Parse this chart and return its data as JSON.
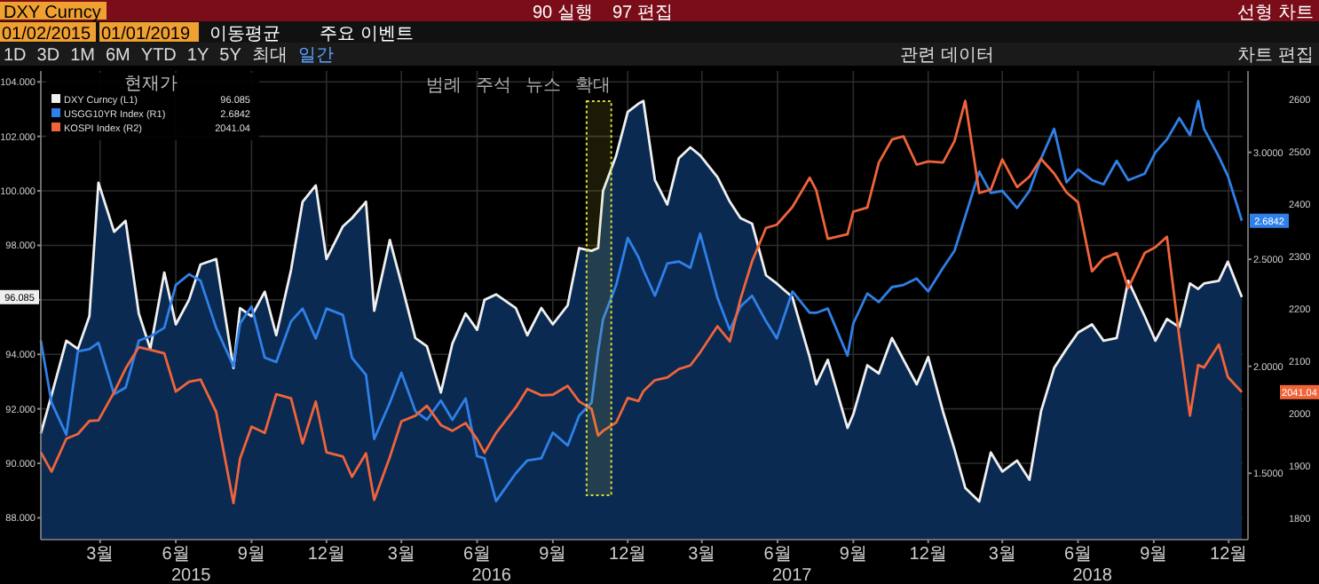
{
  "chart_data": {
    "type": "line",
    "title": "DXY Curncy",
    "annotations": [
      "90 실행",
      "97 편집",
      "선형 차트",
      "01/02/2015",
      "01/01/2019",
      "이동평균",
      "주요 이벤트",
      "1D",
      "3D",
      "1M",
      "6M",
      "YTD",
      "1Y",
      "5Y",
      "최대",
      "일간",
      "관련 데이터",
      "차트 편집",
      "범례",
      "주석",
      "뉴스",
      "확대",
      "2015",
      "2016",
      "2017",
      "2018",
      "96.085",
      "2.6842",
      "2041.04"
    ],
    "legend_title": "현재가",
    "legend": "top left",
    "grid": true,
    "x": [
      "2015-01-02",
      "2015-01-15",
      "2015-02-02",
      "2015-02-16",
      "2015-03-02",
      "2015-03-13",
      "2015-04-01",
      "2015-04-15",
      "2015-05-01",
      "2015-05-15",
      "2015-06-01",
      "2015-06-15",
      "2015-07-01",
      "2015-07-15",
      "2015-08-03",
      "2015-08-24",
      "2015-09-01",
      "2015-09-15",
      "2015-10-01",
      "2015-10-15",
      "2015-11-02",
      "2015-11-16",
      "2015-12-02",
      "2015-12-15",
      "2016-01-04",
      "2016-01-15",
      "2016-02-01",
      "2016-02-11",
      "2016-03-01",
      "2016-03-15",
      "2016-04-01",
      "2016-04-15",
      "2016-05-02",
      "2016-05-16",
      "2016-06-01",
      "2016-06-15",
      "2016-06-24",
      "2016-07-08",
      "2016-08-01",
      "2016-08-15",
      "2016-09-01",
      "2016-09-15",
      "2016-10-03",
      "2016-10-17",
      "2016-11-01",
      "2016-11-09",
      "2016-11-15",
      "2016-12-01",
      "2016-12-15",
      "2016-12-28",
      "2017-01-03",
      "2017-01-17",
      "2017-02-01",
      "2017-02-15",
      "2017-03-01",
      "2017-03-13",
      "2017-04-03",
      "2017-04-18",
      "2017-05-01",
      "2017-05-15",
      "2017-06-01",
      "2017-06-14",
      "2017-07-03",
      "2017-07-24",
      "2017-08-01",
      "2017-08-15",
      "2017-09-08",
      "2017-09-15",
      "2017-10-02",
      "2017-10-16",
      "2017-11-01",
      "2017-11-15",
      "2017-12-01",
      "2017-12-15",
      "2018-01-02",
      "2018-01-16",
      "2018-01-29",
      "2018-02-15",
      "2018-03-01",
      "2018-03-15",
      "2018-04-02",
      "2018-04-17",
      "2018-05-01",
      "2018-05-17",
      "2018-06-01",
      "2018-06-15",
      "2018-07-02",
      "2018-07-16",
      "2018-08-01",
      "2018-08-15",
      "2018-09-04",
      "2018-09-17",
      "2018-10-01",
      "2018-10-16",
      "2018-10-29",
      "2018-11-08",
      "2018-11-15",
      "2018-12-03",
      "2018-12-14",
      "2018-12-31"
    ],
    "xlim": [
      "2015-01-02",
      "2019-01-01"
    ],
    "xticks": [
      {
        "value": "2015-03-15",
        "label": "3월"
      },
      {
        "value": "2015-06-15",
        "label": "6월"
      },
      {
        "value": "2015-09-15",
        "label": "9월"
      },
      {
        "value": "2015-12-15",
        "label": "12월"
      },
      {
        "value": "2016-03-15",
        "label": "3월"
      },
      {
        "value": "2016-06-15",
        "label": "6월"
      },
      {
        "value": "2016-09-15",
        "label": "9월"
      },
      {
        "value": "2016-12-15",
        "label": "12월"
      },
      {
        "value": "2017-03-15",
        "label": "3월"
      },
      {
        "value": "2017-06-15",
        "label": "6월"
      },
      {
        "value": "2017-09-15",
        "label": "9월"
      },
      {
        "value": "2017-12-15",
        "label": "12월"
      },
      {
        "value": "2018-03-15",
        "label": "3월"
      },
      {
        "value": "2018-06-15",
        "label": "6월"
      },
      {
        "value": "2018-09-15",
        "label": "9월"
      },
      {
        "value": "2018-12-15",
        "label": "12월"
      }
    ],
    "ylim": [
      87.2,
      104.4
    ],
    "yticks": [
      {
        "value": 88,
        "label": "88.000"
      },
      {
        "value": 90,
        "label": "90.000"
      },
      {
        "value": 92,
        "label": "92.000"
      },
      {
        "value": 94,
        "label": "94.000"
      },
      {
        "value": 96,
        "label": null
      },
      {
        "value": 98,
        "label": "98.000"
      },
      {
        "value": 100,
        "label": "100.000"
      },
      {
        "value": 102,
        "label": "102.000"
      },
      {
        "value": 104,
        "label": "104.000"
      }
    ],
    "y2lim": [
      1.19,
      3.38
    ],
    "y2ticks": [
      {
        "value": 1.5,
        "label": "1.5000"
      },
      {
        "value": 2,
        "label": "2.0000"
      },
      {
        "value": 2.5,
        "label": "2.5000"
      },
      {
        "value": 3,
        "label": "3.0000"
      }
    ],
    "y3lim": [
      1759,
      2655
    ],
    "y3ticks": [
      1800,
      1900,
      2000,
      2100,
      2200,
      2300,
      2400,
      2500,
      2600
    ],
    "bands": [
      {
        "axis": "x",
        "from": "2016-10-26",
        "to": "2016-11-25",
        "color": "#d8d83a"
      }
    ],
    "series": [
      {
        "name": "DXY Curncy (L1)",
        "type": "area",
        "color": "#f0f0f0",
        "axis": "y",
        "values": [
          91.1,
          92.5,
          94.5,
          94.2,
          95.4,
          100.3,
          98.5,
          98.9,
          95.5,
          94.2,
          97.0,
          95.1,
          96.0,
          97.3,
          97.5,
          93.5,
          95.7,
          95.4,
          96.3,
          94.7,
          97.1,
          99.6,
          100.2,
          97.5,
          98.7,
          99.0,
          99.6,
          95.6,
          98.2,
          96.6,
          94.6,
          94.3,
          92.6,
          94.4,
          95.5,
          94.9,
          96.0,
          96.2,
          95.7,
          94.7,
          95.7,
          95.1,
          95.8,
          97.9,
          97.8,
          97.9,
          100.0,
          101.3,
          102.9,
          103.2,
          103.3,
          100.4,
          99.5,
          101.2,
          101.6,
          101.3,
          100.5,
          99.6,
          99.0,
          98.8,
          96.9,
          96.6,
          96.1,
          93.9,
          92.9,
          93.8,
          91.3,
          91.8,
          93.6,
          93.3,
          94.6,
          93.8,
          92.9,
          93.9,
          91.9,
          90.5,
          89.1,
          88.6,
          90.4,
          89.7,
          90.1,
          89.4,
          91.9,
          93.5,
          94.2,
          94.8,
          95.1,
          94.5,
          94.6,
          96.7,
          95.4,
          94.5,
          95.3,
          95.0,
          96.6,
          96.4,
          96.6,
          96.7,
          97.4,
          96.1
        ]
      },
      {
        "name": "USGG10YR Index (R1)",
        "type": "line",
        "color": "#2f80e8",
        "axis": "y2",
        "values": [
          2.12,
          1.83,
          1.68,
          2.07,
          2.08,
          2.11,
          1.87,
          1.9,
          2.12,
          2.14,
          2.18,
          2.38,
          2.43,
          2.4,
          2.18,
          2.0,
          2.2,
          2.28,
          2.04,
          2.02,
          2.21,
          2.27,
          2.13,
          2.27,
          2.24,
          2.04,
          1.96,
          1.66,
          1.83,
          1.97,
          1.79,
          1.75,
          1.84,
          1.75,
          1.85,
          1.58,
          1.57,
          1.37,
          1.5,
          1.56,
          1.57,
          1.69,
          1.63,
          1.77,
          1.83,
          2.07,
          2.22,
          2.38,
          2.6,
          2.51,
          2.45,
          2.33,
          2.48,
          2.49,
          2.46,
          2.62,
          2.32,
          2.17,
          2.28,
          2.33,
          2.21,
          2.13,
          2.35,
          2.25,
          2.25,
          2.27,
          2.05,
          2.2,
          2.34,
          2.3,
          2.37,
          2.38,
          2.41,
          2.35,
          2.46,
          2.54,
          2.7,
          2.91,
          2.81,
          2.82,
          2.74,
          2.82,
          2.97,
          3.11,
          2.86,
          2.92,
          2.87,
          2.85,
          2.96,
          2.87,
          2.9,
          3.0,
          3.06,
          3.16,
          3.08,
          3.24,
          3.11,
          2.98,
          2.89,
          2.68
        ]
      },
      {
        "name": "KOSPI Index (R2)",
        "type": "line",
        "color": "#f0643a",
        "axis": "y3",
        "values": [
          1926,
          1889,
          1952,
          1961,
          1986,
          1987,
          2041,
          2086,
          2127,
          2122,
          2115,
          2042,
          2061,
          2065,
          2003,
          1829,
          1914,
          1975,
          1963,
          2037,
          2029,
          1943,
          2023,
          1926,
          1918,
          1879,
          1924,
          1835,
          1917,
          1985,
          1996,
          2015,
          1978,
          1967,
          1982,
          1951,
          1925,
          1963,
          2012,
          2047,
          2035,
          2036,
          2053,
          2023,
          2009,
          1958,
          1967,
          1983,
          2030,
          2024,
          2043,
          2064,
          2069,
          2085,
          2092,
          2117,
          2167,
          2138,
          2219,
          2291,
          2355,
          2361,
          2395,
          2451,
          2427,
          2334,
          2343,
          2386,
          2394,
          2480,
          2524,
          2530,
          2476,
          2482,
          2480,
          2521,
          2598,
          2422,
          2428,
          2486,
          2433,
          2453,
          2487,
          2459,
          2423,
          2404,
          2272,
          2297,
          2307,
          2240,
          2307,
          2318,
          2338,
          2146,
          1996,
          2093,
          2088,
          2132,
          2070,
          2041
        ]
      }
    ]
  }
}
